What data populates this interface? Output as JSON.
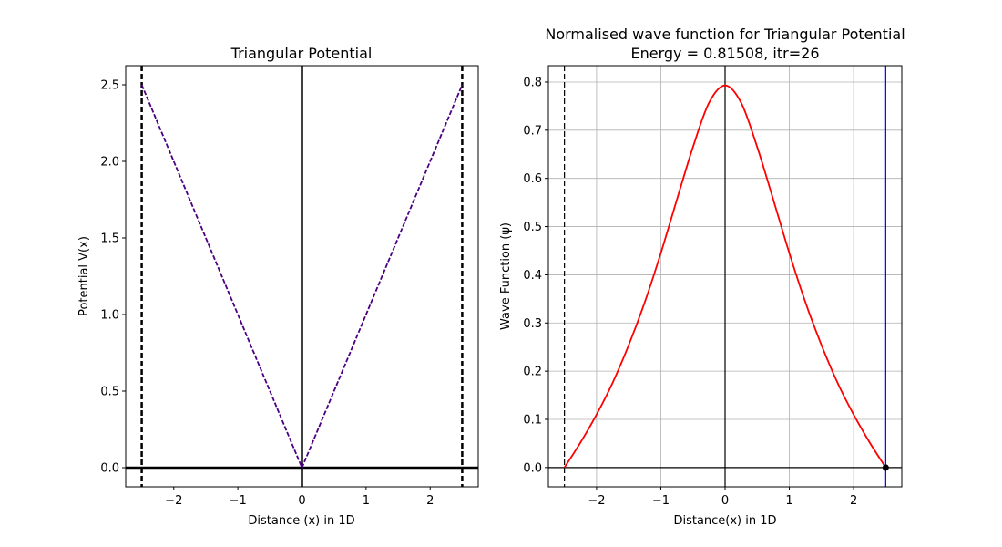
{
  "chart_data": [
    {
      "type": "line",
      "title": "Triangular Potential",
      "xlabel": "Distance (x) in 1D",
      "ylabel": "Potential V(x)",
      "xlim": [
        -2.75,
        2.75
      ],
      "ylim": [
        -0.125,
        2.625
      ],
      "xticks": [
        -2,
        -1,
        0,
        1,
        2
      ],
      "xtick_labels": [
        "−2",
        "−1",
        "0",
        "1",
        "2"
      ],
      "yticks": [
        0.0,
        0.5,
        1.0,
        1.5,
        2.0,
        2.5
      ],
      "ytick_labels": [
        "0.0",
        "0.5",
        "1.0",
        "1.5",
        "2.0",
        "2.5"
      ],
      "grid": false,
      "series": [
        {
          "x": [
            -2.5,
            0,
            2.5
          ],
          "y": [
            2.5,
            0,
            2.5
          ],
          "color": "#4b0082",
          "style": "dashed",
          "role": "potential-curve"
        }
      ],
      "vlines": [
        {
          "x": -2.5,
          "color": "#000000",
          "style": "dashed",
          "role": "left-boundary"
        },
        {
          "x": 2.5,
          "color": "#000000",
          "style": "dashed",
          "role": "right-boundary"
        },
        {
          "x": 0,
          "color": "#000000",
          "style": "solid",
          "role": "center-axis"
        }
      ],
      "hlines": [
        {
          "y": 0,
          "color": "#000000",
          "style": "solid",
          "role": "zero-axis"
        }
      ]
    },
    {
      "type": "line",
      "title": "Normalised wave function for Triangular Potential",
      "subtitle": "Energy =  0.81508, itr=26",
      "xlabel": "Distance(x) in 1D",
      "ylabel": "Wave Function (ψ)",
      "xlim": [
        -2.75,
        2.75
      ],
      "ylim": [
        -0.04,
        0.834
      ],
      "xticks": [
        -2,
        -1,
        0,
        1,
        2
      ],
      "xtick_labels": [
        "−2",
        "−1",
        "0",
        "1",
        "2"
      ],
      "yticks": [
        0.0,
        0.1,
        0.2,
        0.3,
        0.4,
        0.5,
        0.6,
        0.7,
        0.8
      ],
      "ytick_labels": [
        "0.0",
        "0.1",
        "0.2",
        "0.3",
        "0.4",
        "0.5",
        "0.6",
        "0.7",
        "0.8"
      ],
      "grid": true,
      "series": [
        {
          "x": [
            -2.5,
            -2.25,
            -2.0,
            -1.75,
            -1.5,
            -1.25,
            -1.0,
            -0.75,
            -0.5,
            -0.25,
            0.0,
            0.25,
            0.5,
            0.75,
            1.0,
            1.25,
            1.5,
            1.75,
            2.0,
            2.25,
            2.5
          ],
          "y": [
            0.0,
            0.052,
            0.11,
            0.176,
            0.254,
            0.343,
            0.445,
            0.556,
            0.665,
            0.757,
            0.793,
            0.757,
            0.665,
            0.556,
            0.445,
            0.343,
            0.254,
            0.176,
            0.11,
            0.052,
            0.0
          ],
          "color": "#ff0000",
          "style": "solid",
          "role": "wave-function"
        }
      ],
      "points": [
        {
          "x": 2.5,
          "y": 0.0,
          "color": "#000000",
          "role": "endpoint-marker"
        }
      ],
      "vlines": [
        {
          "x": -2.5,
          "color": "#000000",
          "style": "dashed",
          "role": "left-boundary"
        },
        {
          "x": 2.5,
          "color": "#0000ff",
          "style": "solid",
          "role": "right-boundary"
        },
        {
          "x": 0,
          "color": "#000000",
          "style": "solid",
          "role": "center-axis"
        }
      ],
      "hlines": [
        {
          "y": 0,
          "color": "#000000",
          "style": "solid",
          "role": "zero-axis"
        }
      ]
    }
  ]
}
